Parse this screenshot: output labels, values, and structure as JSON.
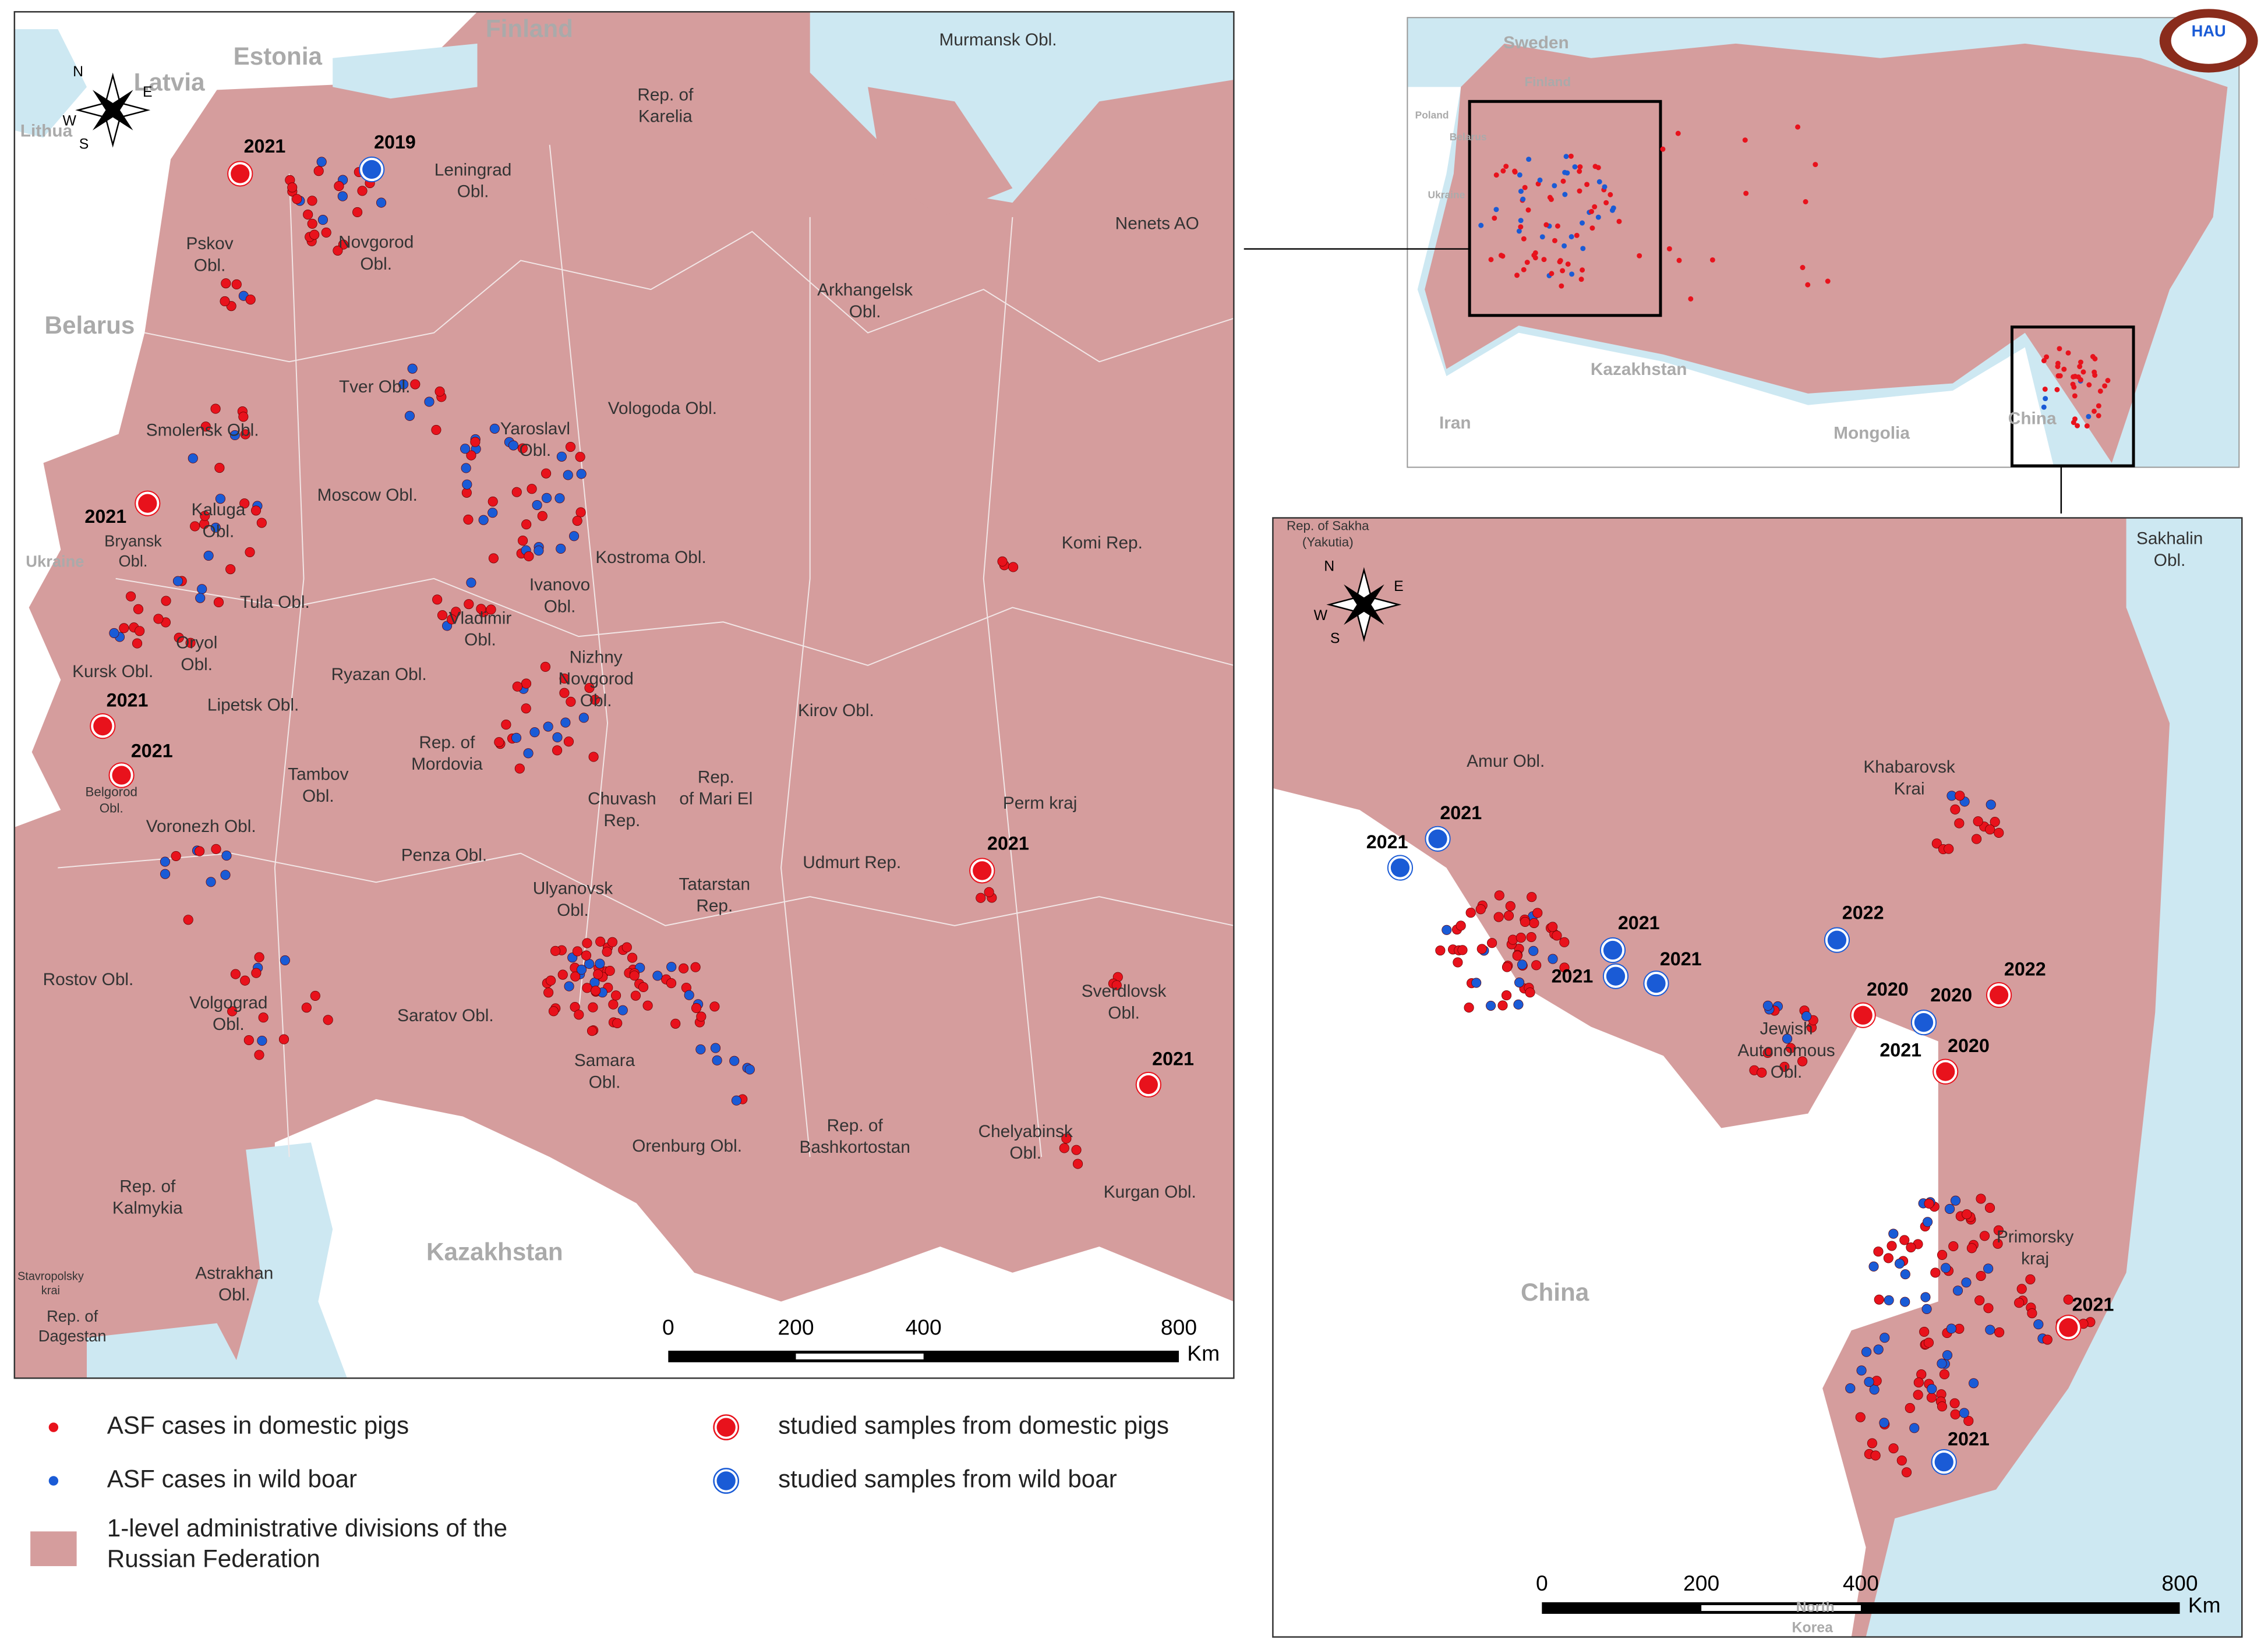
{
  "main_map": {
    "countries": [
      "Finland",
      "Estonia",
      "Latvia",
      "Lithua",
      "Belarus",
      "Ukraine",
      "Kazakhstan"
    ],
    "regions": [
      [
        "Rep. of",
        "Karelia"
      ],
      [
        "Murmansk Obl."
      ],
      [
        "Leningrad",
        "Obl."
      ],
      [
        "Pskov",
        "Obl."
      ],
      [
        "Novgorod",
        "Obl."
      ],
      [
        "Nenets AO"
      ],
      [
        "Arkhangelsk",
        "Obl."
      ],
      [
        "Tver Obl."
      ],
      [
        "Vologoda Obl."
      ],
      [
        "Smolensk Obl."
      ],
      [
        "Yaroslavl",
        "Obl."
      ],
      [
        "Moscow Obl."
      ],
      [
        "Kaluga",
        "Obl."
      ],
      [
        "Bryansk",
        "Obl."
      ],
      [
        "Komi Rep."
      ],
      [
        "Kostroma Obl."
      ],
      [
        "Ivanovo",
        "Obl."
      ],
      [
        "Tula Obl."
      ],
      [
        "Vladimir",
        "Obl."
      ],
      [
        "Oryol",
        "Obl."
      ],
      [
        "Nizhny",
        "Novgorod",
        "Obl."
      ],
      [
        "Kursk Obl."
      ],
      [
        "Ryazan Obl."
      ],
      [
        "Lipetsk Obl."
      ],
      [
        "Kirov Obl."
      ],
      [
        "Rep. of",
        "Mordovia"
      ],
      [
        "Rep.",
        "of Mari El"
      ],
      [
        "Chuvash",
        "Rep."
      ],
      [
        "Tambov",
        "Obl."
      ],
      [
        "Belgorod",
        "Obl."
      ],
      [
        "Perm kraj"
      ],
      [
        "Voronezh Obl."
      ],
      [
        "Penza Obl."
      ],
      [
        "Udmurt Rep."
      ],
      [
        "Tatarstan",
        "Rep."
      ],
      [
        "Ulyanovsk",
        "Obl."
      ],
      [
        "Rostov Obl."
      ],
      [
        "Volgograd",
        "Obl."
      ],
      [
        "Saratov Obl."
      ],
      [
        "Sverdlovsk",
        "Obl."
      ],
      [
        "Samara",
        "Obl."
      ],
      [
        "Chelyabinsk",
        "Obl."
      ],
      [
        "Rep. of",
        "Bashkortostan"
      ],
      [
        "Orenburg Obl."
      ],
      [
        "Rep. of",
        "Kalmykia"
      ],
      [
        "Kurgan Obl."
      ],
      [
        "Astrakhan",
        "Obl."
      ],
      [
        "Stavropolsky",
        "krai"
      ],
      [
        "Rep. of",
        "Dagestan"
      ]
    ],
    "years": [
      "2021",
      "2019",
      "2021",
      "2021",
      "2021",
      "2021",
      "2021"
    ],
    "compass": [
      "N",
      "E",
      "S",
      "W"
    ],
    "scale_bar": {
      "ticks": [
        0,
        200,
        400,
        800
      ],
      "unit": "Km"
    }
  },
  "overview_map": {
    "countries": [
      "Sweden",
      "Finland",
      "Poland",
      "Belarus",
      "Ukraine",
      "Kazakhstan",
      "Iran",
      "Mongolia",
      "China"
    ]
  },
  "far_east_map": {
    "regions": [
      [
        "Rep. of Sakha",
        "(Yakutia)"
      ],
      [
        "Sakhalin",
        "Obl."
      ],
      [
        "Amur Obl."
      ],
      [
        "Khabarovsk",
        "Krai"
      ],
      [
        "Jewish",
        "Autonomous",
        "Obl."
      ],
      [
        "Primorsky",
        "kraj"
      ]
    ],
    "countries": [
      "China",
      "North",
      "Korea"
    ],
    "years": [
      "2021",
      "2021",
      "2021",
      "2021",
      "2021",
      "2022",
      "2020",
      "2020",
      "2022",
      "2021",
      "2020",
      "2021",
      "2021"
    ],
    "compass": [
      "N",
      "E",
      "S",
      "W"
    ],
    "scale_bar": {
      "ticks": [
        0,
        200,
        400,
        800
      ],
      "unit": "Km"
    }
  },
  "legend": [
    [
      "ASF cases in domestic pigs"
    ],
    [
      "ASF cases in wild boar"
    ],
    [
      "1-level administrative divisions of the",
      "Russian Federation"
    ],
    [
      "studied samples from domestic pigs"
    ],
    [
      "studied samples from wild boar"
    ]
  ],
  "logo": "HAU"
}
